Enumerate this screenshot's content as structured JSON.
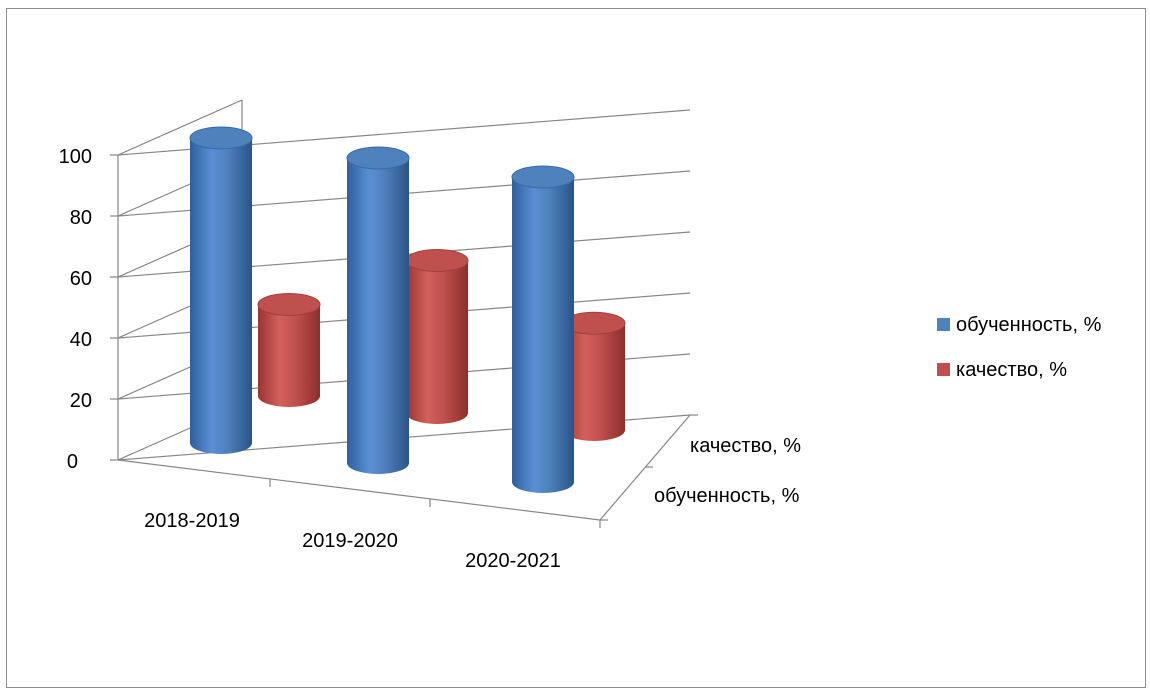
{
  "chart_data": {
    "type": "bar",
    "categories": [
      "2018-2019",
      "2019-2020",
      "2020-2021"
    ],
    "series": [
      {
        "name": "обученность, %",
        "values": [
          100,
          100,
          100
        ],
        "color": "#4f81bd"
      },
      {
        "name": "качество,  %",
        "values": [
          30,
          50,
          35
        ],
        "color": "#c0504d"
      }
    ],
    "y_ticks": [
      "0",
      "20",
      "40",
      "60",
      "80",
      "100"
    ],
    "ylim": [
      0,
      100
    ],
    "depth_labels": [
      "качество,  %",
      "обученность, %"
    ],
    "legend": "right",
    "grid": true
  }
}
